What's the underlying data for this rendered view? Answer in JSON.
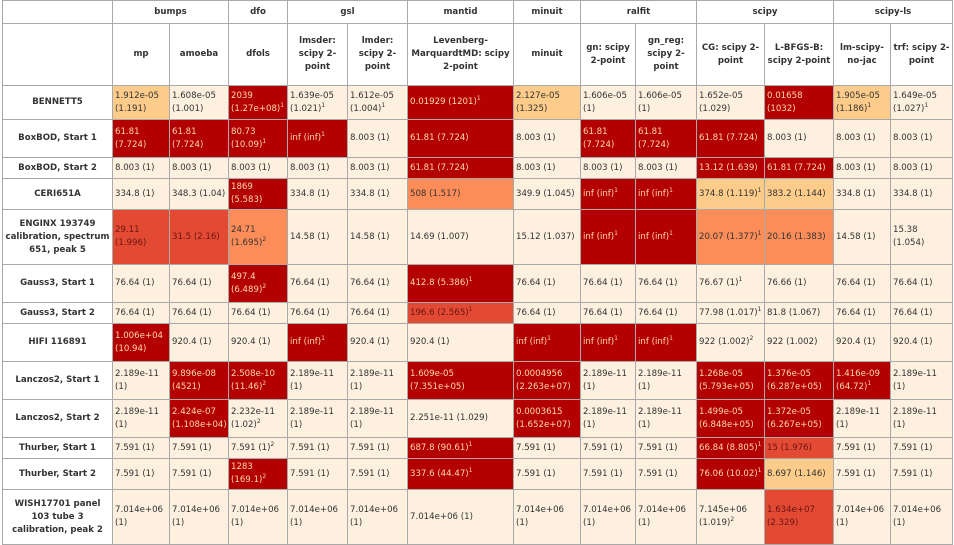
{
  "colors": {
    "c0": "#fdf0df",
    "c1": "#fdcc8a",
    "c2": "#fc8d59",
    "c3": "#e34a33",
    "c4": "#b30000"
  },
  "groups": [
    {
      "label": "bumps",
      "span": 2
    },
    {
      "label": "dfo",
      "span": 1
    },
    {
      "label": "gsl",
      "span": 2
    },
    {
      "label": "mantid",
      "span": 1
    },
    {
      "label": "minuit",
      "span": 1
    },
    {
      "label": "ralfit",
      "span": 2
    },
    {
      "label": "scipy",
      "span": 2
    },
    {
      "label": "scipy-ls",
      "span": 2
    }
  ],
  "columns": [
    "mp",
    "amoeba",
    "dfols",
    "lmsder: scipy 2-point",
    "lmder: scipy 2-point",
    "Levenberg-MarquardtMD: scipy 2-point",
    "minuit",
    "gn: scipy 2-point",
    "gn_reg: scipy 2-point",
    "CG: scipy 2-point",
    "L-BFGS-B: scipy 2-point",
    "lm-scipy-no-jac",
    "trf: scipy 2-point"
  ],
  "rows": [
    {
      "name": "BENNETT5",
      "cells": [
        {
          "t": "1.912e-05 (1.191)",
          "c": 1
        },
        {
          "t": "1.608e-05 (1.001)",
          "c": 0
        },
        {
          "t": "2039 (1.27e+08)",
          "sup": "1",
          "c": 4
        },
        {
          "t": "1.639e-05 (1.021)",
          "sup": "1",
          "c": 0
        },
        {
          "t": "1.612e-05 (1.004)",
          "sup": "1",
          "c": 0
        },
        {
          "t": "0.01929 (1201)",
          "sup": "1",
          "c": 4
        },
        {
          "t": "2.127e-05 (1.325)",
          "c": 1
        },
        {
          "t": "1.606e-05 (1)",
          "c": 0
        },
        {
          "t": "1.606e-05 (1)",
          "c": 0
        },
        {
          "t": "1.652e-05 (1.029)",
          "c": 0
        },
        {
          "t": "0.01658 (1032)",
          "c": 4
        },
        {
          "t": "1.905e-05 (1.186)",
          "sup": "1",
          "c": 1
        },
        {
          "t": "1.649e-05 (1.027)",
          "sup": "1",
          "c": 0
        }
      ]
    },
    {
      "name": "BoxBOD, Start 1",
      "cells": [
        {
          "t": "61.81 (7.724)",
          "c": 4
        },
        {
          "t": "61.81 (7.724)",
          "c": 4
        },
        {
          "t": "80.73 (10.09)",
          "sup": "1",
          "c": 4
        },
        {
          "t": "inf (inf)",
          "sup": "1",
          "c": 4
        },
        {
          "t": "8.003 (1)",
          "c": 0
        },
        {
          "t": "61.81 (7.724)",
          "c": 4
        },
        {
          "t": "8.003 (1)",
          "c": 0
        },
        {
          "t": "61.81 (7.724)",
          "c": 4
        },
        {
          "t": "61.81 (7.724)",
          "c": 4
        },
        {
          "t": "61.81 (7.724)",
          "c": 4
        },
        {
          "t": "8.003 (1)",
          "c": 0
        },
        {
          "t": "8.003 (1)",
          "c": 0
        },
        {
          "t": "8.003 (1)",
          "c": 0
        }
      ]
    },
    {
      "name": "BoxBOD, Start 2",
      "cells": [
        {
          "t": "8.003 (1)",
          "c": 0
        },
        {
          "t": "8.003 (1)",
          "c": 0
        },
        {
          "t": "8.003 (1)",
          "c": 0
        },
        {
          "t": "8.003 (1)",
          "c": 0
        },
        {
          "t": "8.003 (1)",
          "c": 0
        },
        {
          "t": "61.81 (7.724)",
          "c": 4
        },
        {
          "t": "8.003 (1)",
          "c": 0
        },
        {
          "t": "8.003 (1)",
          "c": 0
        },
        {
          "t": "8.003 (1)",
          "c": 0
        },
        {
          "t": "13.12 (1.639)",
          "c": 4
        },
        {
          "t": "61.81 (7.724)",
          "c": 4
        },
        {
          "t": "8.003 (1)",
          "c": 0
        },
        {
          "t": "8.003 (1)",
          "c": 0
        }
      ]
    },
    {
      "name": "CERI651A",
      "cells": [
        {
          "t": "334.8 (1)",
          "c": 0
        },
        {
          "t": "348.3 (1.04)",
          "c": 0
        },
        {
          "t": "1869 (5.583)",
          "c": 4
        },
        {
          "t": "334.8 (1)",
          "c": 0
        },
        {
          "t": "334.8 (1)",
          "c": 0
        },
        {
          "t": "508 (1.517)",
          "c": 2
        },
        {
          "t": "349.9 (1.045)",
          "c": 0
        },
        {
          "t": "inf (inf)",
          "sup": "1",
          "c": 4
        },
        {
          "t": "inf (inf)",
          "sup": "1",
          "c": 4
        },
        {
          "t": "374.8 (1.119)",
          "sup": "1",
          "c": 1
        },
        {
          "t": "383.2 (1.144)",
          "c": 1
        },
        {
          "t": "334.8 (1)",
          "c": 0
        },
        {
          "t": "334.8 (1)",
          "c": 0
        }
      ]
    },
    {
      "name": "ENGINX 193749 calibration, spectrum 651, peak 5",
      "cells": [
        {
          "t": "29.11 (1.996)",
          "c": 3
        },
        {
          "t": "31.5 (2.16)",
          "c": 3
        },
        {
          "t": "24.71 (1.695)",
          "sup": "2",
          "c": 2
        },
        {
          "t": "14.58 (1)",
          "c": 0
        },
        {
          "t": "14.58 (1)",
          "c": 0
        },
        {
          "t": "14.69 (1.007)",
          "c": 0
        },
        {
          "t": "15.12 (1.037)",
          "c": 0
        },
        {
          "t": "inf (inf)",
          "sup": "1",
          "c": 4
        },
        {
          "t": "inf (inf)",
          "sup": "1",
          "c": 4
        },
        {
          "t": "20.07 (1.377)",
          "sup": "1",
          "c": 2
        },
        {
          "t": "20.16 (1.383)",
          "c": 2
        },
        {
          "t": "14.58 (1)",
          "c": 0
        },
        {
          "t": "15.38 (1.054)",
          "c": 0
        }
      ]
    },
    {
      "name": "Gauss3, Start 1",
      "cells": [
        {
          "t": "76.64 (1)",
          "c": 0
        },
        {
          "t": "76.64 (1)",
          "c": 0
        },
        {
          "t": "497.4 (6.489)",
          "sup": "2",
          "c": 4
        },
        {
          "t": "76.64 (1)",
          "c": 0
        },
        {
          "t": "76.64 (1)",
          "c": 0
        },
        {
          "t": "412.8 (5.386)",
          "sup": "1",
          "c": 4
        },
        {
          "t": "76.64 (1)",
          "c": 0
        },
        {
          "t": "76.64 (1)",
          "c": 0
        },
        {
          "t": "76.64 (1)",
          "c": 0
        },
        {
          "t": "76.67 (1)",
          "sup": "1",
          "c": 0
        },
        {
          "t": "76.66 (1)",
          "c": 0
        },
        {
          "t": "76.64 (1)",
          "c": 0
        },
        {
          "t": "76.64 (1)",
          "c": 0
        }
      ]
    },
    {
      "name": "Gauss3, Start 2",
      "cells": [
        {
          "t": "76.64 (1)",
          "c": 0
        },
        {
          "t": "76.64 (1)",
          "c": 0
        },
        {
          "t": "76.64 (1)",
          "c": 0
        },
        {
          "t": "76.64 (1)",
          "c": 0
        },
        {
          "t": "76.64 (1)",
          "c": 0
        },
        {
          "t": "196.6 (2.565)",
          "sup": "1",
          "c": 3
        },
        {
          "t": "76.64 (1)",
          "c": 0
        },
        {
          "t": "76.64 (1)",
          "c": 0
        },
        {
          "t": "76.64 (1)",
          "c": 0
        },
        {
          "t": "77.98 (1.017)",
          "sup": "1",
          "c": 0
        },
        {
          "t": "81.8 (1.067)",
          "c": 0
        },
        {
          "t": "76.64 (1)",
          "c": 0
        },
        {
          "t": "76.64 (1)",
          "c": 0
        }
      ]
    },
    {
      "name": "HIFI 116891",
      "cells": [
        {
          "t": "1.006e+04 (10.94)",
          "c": 4
        },
        {
          "t": "920.4 (1)",
          "c": 0
        },
        {
          "t": "920.4 (1)",
          "c": 0
        },
        {
          "t": "inf (inf)",
          "sup": "1",
          "c": 4
        },
        {
          "t": "920.4 (1)",
          "c": 0
        },
        {
          "t": "920.4 (1)",
          "c": 0
        },
        {
          "t": "inf (inf)",
          "sup": "1",
          "c": 4
        },
        {
          "t": "inf (inf)",
          "sup": "1",
          "c": 4
        },
        {
          "t": "inf (inf)",
          "sup": "1",
          "c": 4
        },
        {
          "t": "922 (1.002)",
          "sup": "2",
          "c": 0
        },
        {
          "t": "922 (1.002)",
          "c": 0
        },
        {
          "t": "920.4 (1)",
          "c": 0
        },
        {
          "t": "920.4 (1)",
          "c": 0
        }
      ]
    },
    {
      "name": "Lanczos2, Start 1",
      "cells": [
        {
          "t": "2.189e-11 (1)",
          "c": 0
        },
        {
          "t": "9.896e-08 (4521)",
          "c": 4
        },
        {
          "t": "2.508e-10 (11.46)",
          "sup": "2",
          "c": 4
        },
        {
          "t": "2.189e-11 (1)",
          "c": 0
        },
        {
          "t": "2.189e-11 (1)",
          "c": 0
        },
        {
          "t": "1.609e-05 (7.351e+05)",
          "c": 4
        },
        {
          "t": "0.0004956 (2.263e+07)",
          "c": 4
        },
        {
          "t": "2.189e-11 (1)",
          "c": 0
        },
        {
          "t": "2.189e-11 (1)",
          "c": 0
        },
        {
          "t": "1.268e-05 (5.793e+05)",
          "c": 4
        },
        {
          "t": "1.376e-05 (6.287e+05)",
          "c": 4
        },
        {
          "t": "1.416e-09 (64.72)",
          "sup": "1",
          "c": 4
        },
        {
          "t": "2.189e-11 (1)",
          "c": 0
        }
      ]
    },
    {
      "name": "Lanczos2, Start 2",
      "cells": [
        {
          "t": "2.189e-11 (1)",
          "c": 0
        },
        {
          "t": "2.424e-07 (1.108e+04)",
          "c": 4
        },
        {
          "t": "2.232e-11 (1.02)",
          "sup": "2",
          "c": 0
        },
        {
          "t": "2.189e-11 (1)",
          "c": 0
        },
        {
          "t": "2.189e-11 (1)",
          "c": 0
        },
        {
          "t": "2.251e-11 (1.029)",
          "c": 0
        },
        {
          "t": "0.0003615 (1.652e+07)",
          "c": 4
        },
        {
          "t": "2.189e-11 (1)",
          "c": 0
        },
        {
          "t": "2.189e-11 (1)",
          "c": 0
        },
        {
          "t": "1.499e-05 (6.848e+05)",
          "c": 4
        },
        {
          "t": "1.372e-05 (6.267e+05)",
          "c": 4
        },
        {
          "t": "2.189e-11 (1)",
          "c": 0
        },
        {
          "t": "2.189e-11 (1)",
          "c": 0
        }
      ]
    },
    {
      "name": "Thurber, Start 1",
      "cells": [
        {
          "t": "7.591 (1)",
          "c": 0
        },
        {
          "t": "7.591 (1)",
          "c": 0
        },
        {
          "t": "7.591 (1)",
          "sup": "2",
          "c": 0
        },
        {
          "t": "7.591 (1)",
          "c": 0
        },
        {
          "t": "7.591 (1)",
          "c": 0
        },
        {
          "t": "687.8 (90.61)",
          "sup": "1",
          "c": 4
        },
        {
          "t": "7.591 (1)",
          "c": 0
        },
        {
          "t": "7.591 (1)",
          "c": 0
        },
        {
          "t": "7.591 (1)",
          "c": 0
        },
        {
          "t": "66.84 (8.805)",
          "sup": "1",
          "c": 4
        },
        {
          "t": "15 (1.976)",
          "c": 3
        },
        {
          "t": "7.591 (1)",
          "c": 0
        },
        {
          "t": "7.591 (1)",
          "c": 0
        }
      ]
    },
    {
      "name": "Thurber, Start 2",
      "cells": [
        {
          "t": "7.591 (1)",
          "c": 0
        },
        {
          "t": "7.591 (1)",
          "c": 0
        },
        {
          "t": "1283 (169.1)",
          "sup": "2",
          "c": 4
        },
        {
          "t": "7.591 (1)",
          "c": 0
        },
        {
          "t": "7.591 (1)",
          "c": 0
        },
        {
          "t": "337.6 (44.47)",
          "sup": "1",
          "c": 4
        },
        {
          "t": "7.591 (1)",
          "c": 0
        },
        {
          "t": "7.591 (1)",
          "c": 0
        },
        {
          "t": "7.591 (1)",
          "c": 0
        },
        {
          "t": "76.06 (10.02)",
          "sup": "1",
          "c": 4
        },
        {
          "t": "8.697 (1.146)",
          "c": 1
        },
        {
          "t": "7.591 (1)",
          "c": 0
        },
        {
          "t": "7.591 (1)",
          "c": 0
        }
      ]
    },
    {
      "name": "WISH17701 panel 103 tube 3 calibration, peak 2",
      "cells": [
        {
          "t": "7.014e+06 (1)",
          "c": 0
        },
        {
          "t": "7.014e+06 (1)",
          "c": 0
        },
        {
          "t": "7.014e+06 (1)",
          "c": 0
        },
        {
          "t": "7.014e+06 (1)",
          "c": 0
        },
        {
          "t": "7.014e+06 (1)",
          "c": 0
        },
        {
          "t": "7.014e+06 (1)",
          "c": 0
        },
        {
          "t": "7.014e+06 (1)",
          "c": 0
        },
        {
          "t": "7.014e+06 (1)",
          "c": 0
        },
        {
          "t": "7.014e+06 (1)",
          "c": 0
        },
        {
          "t": "7.145e+06 (1.019)",
          "sup": "2",
          "c": 0
        },
        {
          "t": "1.634e+07 (2.329)",
          "c": 3
        },
        {
          "t": "7.014e+06 (1)",
          "c": 0
        },
        {
          "t": "7.014e+06 (1)",
          "c": 0
        }
      ]
    }
  ]
}
